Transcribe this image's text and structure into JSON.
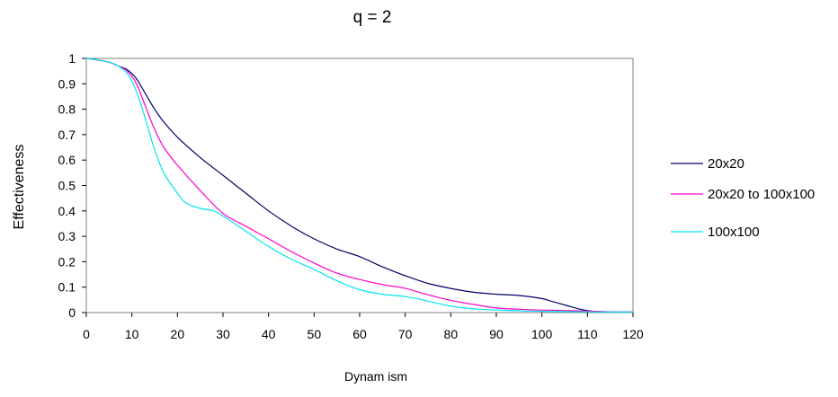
{
  "chart_data": {
    "type": "line",
    "title": "q = 2",
    "xlabel": "Dynam ism",
    "ylabel": "Effectiveness",
    "xlim": [
      0,
      120
    ],
    "ylim": [
      0,
      1
    ],
    "xticks": [
      0,
      10,
      20,
      30,
      40,
      50,
      60,
      70,
      80,
      90,
      100,
      110,
      120
    ],
    "xtick_labels": [
      "0",
      "10",
      "20",
      "30",
      "40",
      "50",
      "60",
      "70",
      "80",
      "90",
      "100",
      "110",
      "120"
    ],
    "yticks": [
      0,
      0.1,
      0.2,
      0.3,
      0.4,
      0.5,
      0.6,
      0.7,
      0.8,
      0.9,
      1
    ],
    "ytick_labels": [
      "0",
      "0.1",
      "0.2",
      "0.3",
      "0.4",
      "0.5",
      "0.6",
      "0.7",
      "0.8",
      "0.9",
      "1"
    ],
    "grid": false,
    "legend_position": "right",
    "series": [
      {
        "name": "20x20",
        "color": "#000066",
        "x": [
          0,
          2,
          5,
          7,
          9,
          11,
          13,
          15,
          17,
          20,
          25,
          30,
          35,
          40,
          45,
          50,
          55,
          60,
          65,
          70,
          75,
          80,
          85,
          90,
          95,
          100,
          102,
          105,
          108,
          110,
          112,
          115,
          120
        ],
        "y": [
          1.0,
          0.995,
          0.985,
          0.97,
          0.955,
          0.92,
          0.86,
          0.8,
          0.75,
          0.69,
          0.61,
          0.54,
          0.47,
          0.4,
          0.34,
          0.29,
          0.25,
          0.22,
          0.18,
          0.145,
          0.115,
          0.095,
          0.08,
          0.072,
          0.067,
          0.055,
          0.045,
          0.03,
          0.015,
          0.008,
          0.004,
          0.002,
          0.002
        ]
      },
      {
        "name": "20x20 to 100x100",
        "color": "#ff00cc",
        "x": [
          0,
          2,
          5,
          7,
          9,
          11,
          13,
          15,
          17,
          20,
          25,
          30,
          35,
          40,
          45,
          50,
          55,
          60,
          65,
          70,
          75,
          80,
          85,
          90,
          95,
          100,
          105,
          110,
          115,
          120
        ],
        "y": [
          1.0,
          0.995,
          0.985,
          0.97,
          0.95,
          0.9,
          0.81,
          0.72,
          0.65,
          0.58,
          0.48,
          0.39,
          0.34,
          0.29,
          0.24,
          0.195,
          0.155,
          0.13,
          0.11,
          0.095,
          0.07,
          0.048,
          0.032,
          0.018,
          0.013,
          0.01,
          0.008,
          0.006,
          0.003,
          0.002
        ]
      },
      {
        "name": "100x100",
        "color": "#00e5ee",
        "x": [
          0,
          2,
          5,
          7,
          9,
          11,
          13,
          15,
          17,
          20,
          22,
          25,
          28,
          30,
          35,
          40,
          45,
          50,
          55,
          60,
          65,
          70,
          75,
          80,
          85,
          90,
          95,
          100,
          105,
          110,
          115,
          120
        ],
        "y": [
          1.0,
          0.995,
          0.985,
          0.97,
          0.94,
          0.87,
          0.76,
          0.64,
          0.55,
          0.47,
          0.43,
          0.41,
          0.4,
          0.38,
          0.32,
          0.26,
          0.21,
          0.17,
          0.125,
          0.09,
          0.072,
          0.063,
          0.045,
          0.025,
          0.015,
          0.01,
          0.007,
          0.005,
          0.004,
          0.003,
          0.002,
          0.002
        ]
      }
    ]
  }
}
